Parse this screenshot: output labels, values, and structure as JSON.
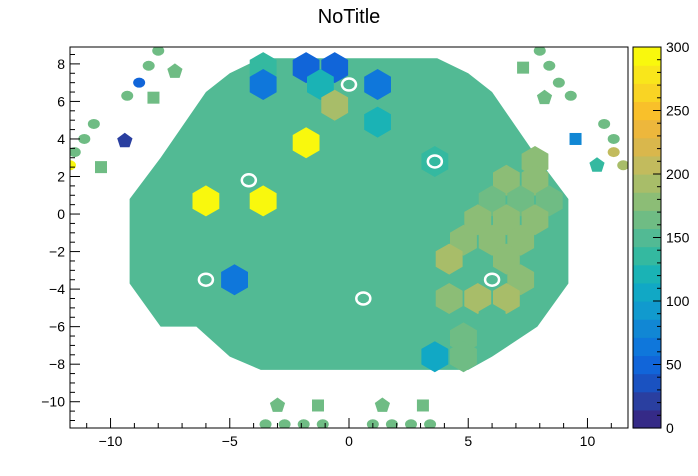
{
  "chart_data": {
    "type": "heatmap",
    "title": "NoTitle",
    "xlabel": "",
    "ylabel": "",
    "xlim": [
      -11.7,
      11.7
    ],
    "ylim": [
      -11.4,
      8.9
    ],
    "zlim": [
      0,
      300
    ],
    "x_ticks": [
      -10,
      -5,
      0,
      5,
      10
    ],
    "y_ticks": [
      -10,
      -8,
      -6,
      -4,
      -2,
      0,
      2,
      4,
      6,
      8
    ],
    "z_ticks": [
      0,
      50,
      100,
      150,
      200,
      250,
      300
    ],
    "grid": false,
    "colorbar": "right",
    "colors": {
      "base": "#52ba94",
      "palette": [
        "#352a87",
        "#2a3fa0",
        "#1a52c1",
        "#1165d9",
        "#0f77db",
        "#1187d4",
        "#119ace",
        "#11a8c5",
        "#1ab3b5",
        "#34b9a0",
        "#52ba94",
        "#6fbc84",
        "#8cbd76",
        "#a8bd69",
        "#c2bb5d",
        "#d9b74c",
        "#edb73c",
        "#f9c02a",
        "#f9d424",
        "#f9e61b",
        "#f9f80d"
      ],
      "hole": "#ffffff",
      "axis": "#000000"
    },
    "hexagon_outline": [
      [
        -9.2,
        -3.7
      ],
      [
        -9.2,
        0.8
      ],
      [
        -7.9,
        3.0
      ],
      [
        -6.0,
        6.5
      ],
      [
        -5.0,
        7.5
      ],
      [
        -3.7,
        8.3
      ],
      [
        3.7,
        8.3
      ],
      [
        5.0,
        7.5
      ],
      [
        6.0,
        6.5
      ],
      [
        7.9,
        3.0
      ],
      [
        9.2,
        0.8
      ],
      [
        9.2,
        -3.7
      ],
      [
        7.9,
        -6.0
      ],
      [
        6.0,
        -7.6
      ],
      [
        5.0,
        -8.3
      ],
      [
        -3.7,
        -8.3
      ],
      [
        -5.0,
        -7.6
      ],
      [
        -6.4,
        -6.0
      ],
      [
        -7.9,
        -6.0
      ]
    ],
    "cells": [
      {
        "x": -3.6,
        "y": 7.8,
        "z": 135
      },
      {
        "x": -1.8,
        "y": 7.8,
        "z": 55
      },
      {
        "x": -0.6,
        "y": 7.8,
        "z": 55
      },
      {
        "x": -3.6,
        "y": 6.9,
        "z": 60
      },
      {
        "x": -1.2,
        "y": 6.9,
        "z": 120
      },
      {
        "x": 1.2,
        "y": 6.9,
        "z": 60
      },
      {
        "x": -0.6,
        "y": 5.8,
        "z": 195
      },
      {
        "x": 1.2,
        "y": 4.9,
        "z": 120
      },
      {
        "x": -6.0,
        "y": 4.9,
        "z": 150
      },
      {
        "x": -1.8,
        "y": 3.8,
        "z": 300
      },
      {
        "x": 3.6,
        "y": 2.8,
        "z": 135
      },
      {
        "x": 7.8,
        "y": 2.8,
        "z": 185
      },
      {
        "x": 6.6,
        "y": 1.8,
        "z": 185
      },
      {
        "x": 7.8,
        "y": 1.8,
        "z": 185
      },
      {
        "x": -6.0,
        "y": 0.7,
        "z": 300
      },
      {
        "x": -3.6,
        "y": 0.7,
        "z": 300
      },
      {
        "x": 6.0,
        "y": 0.7,
        "z": 170
      },
      {
        "x": 7.2,
        "y": 0.7,
        "z": 170
      },
      {
        "x": 8.4,
        "y": 0.7,
        "z": 170
      },
      {
        "x": 5.4,
        "y": -0.3,
        "z": 185
      },
      {
        "x": 6.6,
        "y": -0.3,
        "z": 185
      },
      {
        "x": 7.8,
        "y": -0.3,
        "z": 185
      },
      {
        "x": 4.8,
        "y": -1.4,
        "z": 185
      },
      {
        "x": 6.0,
        "y": -1.4,
        "z": 185
      },
      {
        "x": 7.2,
        "y": -1.4,
        "z": 185
      },
      {
        "x": 4.2,
        "y": -2.4,
        "z": 195
      },
      {
        "x": 6.6,
        "y": -2.4,
        "z": 185
      },
      {
        "x": -4.8,
        "y": -3.5,
        "z": 70
      },
      {
        "x": 7.2,
        "y": -3.5,
        "z": 185
      },
      {
        "x": 4.2,
        "y": -4.5,
        "z": 185
      },
      {
        "x": 5.4,
        "y": -4.5,
        "z": 195
      },
      {
        "x": 6.6,
        "y": -4.5,
        "z": 195
      },
      {
        "x": 6.0,
        "y": -5.6,
        "z": 150
      },
      {
        "x": 4.8,
        "y": -6.6,
        "z": 170
      },
      {
        "x": 3.6,
        "y": -7.6,
        "z": 110
      },
      {
        "x": 4.8,
        "y": -7.6,
        "z": 170
      }
    ],
    "holes": [
      {
        "x": 0.0,
        "y": 6.9
      },
      {
        "x": -4.2,
        "y": 1.8
      },
      {
        "x": 3.6,
        "y": 2.8
      },
      {
        "x": -6.0,
        "y": -3.5
      },
      {
        "x": 6.0,
        "y": -3.5
      },
      {
        "x": 0.6,
        "y": -4.5
      }
    ],
    "outer_points": [
      {
        "x": -8.0,
        "y": 8.7,
        "z": 165,
        "shape": "circle"
      },
      {
        "x": -8.4,
        "y": 7.9,
        "z": 165,
        "shape": "circle"
      },
      {
        "x": -7.3,
        "y": 7.6,
        "z": 165,
        "shape": "pentagon"
      },
      {
        "x": -8.8,
        "y": 7.0,
        "z": 50,
        "shape": "circle"
      },
      {
        "x": -9.3,
        "y": 6.3,
        "z": 165,
        "shape": "circle"
      },
      {
        "x": -8.2,
        "y": 6.2,
        "z": 165,
        "shape": "square"
      },
      {
        "x": -10.7,
        "y": 4.8,
        "z": 165,
        "shape": "circle"
      },
      {
        "x": -11.1,
        "y": 4.0,
        "z": 165,
        "shape": "circle"
      },
      {
        "x": -9.4,
        "y": 3.9,
        "z": 25,
        "shape": "pentagon"
      },
      {
        "x": -11.5,
        "y": 3.3,
        "z": 165,
        "shape": "circle"
      },
      {
        "x": -11.7,
        "y": 2.6,
        "z": 300,
        "shape": "circle"
      },
      {
        "x": -10.4,
        "y": 2.5,
        "z": 165,
        "shape": "square"
      },
      {
        "x": 8.0,
        "y": 8.7,
        "z": 165,
        "shape": "circle"
      },
      {
        "x": 8.4,
        "y": 7.9,
        "z": 165,
        "shape": "circle"
      },
      {
        "x": 7.3,
        "y": 7.8,
        "z": 165,
        "shape": "square"
      },
      {
        "x": 8.8,
        "y": 7.0,
        "z": 165,
        "shape": "circle"
      },
      {
        "x": 9.3,
        "y": 6.3,
        "z": 165,
        "shape": "circle"
      },
      {
        "x": 8.2,
        "y": 6.2,
        "z": 165,
        "shape": "pentagon"
      },
      {
        "x": 10.7,
        "y": 4.8,
        "z": 165,
        "shape": "circle"
      },
      {
        "x": 9.5,
        "y": 4.0,
        "z": 80,
        "shape": "square"
      },
      {
        "x": 11.1,
        "y": 4.0,
        "z": 165,
        "shape": "circle"
      },
      {
        "x": 11.1,
        "y": 3.3,
        "z": 200,
        "shape": "circle"
      },
      {
        "x": 10.4,
        "y": 2.6,
        "z": 130,
        "shape": "pentagon"
      },
      {
        "x": 11.5,
        "y": 2.6,
        "z": 190,
        "shape": "circle"
      },
      {
        "x": -3.0,
        "y": -10.2,
        "z": 165,
        "shape": "pentagon"
      },
      {
        "x": -1.3,
        "y": -10.2,
        "z": 165,
        "shape": "square"
      },
      {
        "x": 1.4,
        "y": -10.2,
        "z": 165,
        "shape": "pentagon"
      },
      {
        "x": 3.1,
        "y": -10.2,
        "z": 165,
        "shape": "square"
      },
      {
        "x": -3.5,
        "y": -11.2,
        "z": 165,
        "shape": "circle"
      },
      {
        "x": -2.7,
        "y": -11.2,
        "z": 165,
        "shape": "circle"
      },
      {
        "x": -1.9,
        "y": -11.2,
        "z": 165,
        "shape": "circle"
      },
      {
        "x": -1.1,
        "y": -11.2,
        "z": 165,
        "shape": "circle"
      },
      {
        "x": 1.0,
        "y": -11.2,
        "z": 165,
        "shape": "circle"
      },
      {
        "x": 1.8,
        "y": -11.2,
        "z": 165,
        "shape": "circle"
      },
      {
        "x": 2.6,
        "y": -11.2,
        "z": 165,
        "shape": "circle"
      },
      {
        "x": 3.4,
        "y": -11.2,
        "z": 165,
        "shape": "circle"
      }
    ]
  }
}
